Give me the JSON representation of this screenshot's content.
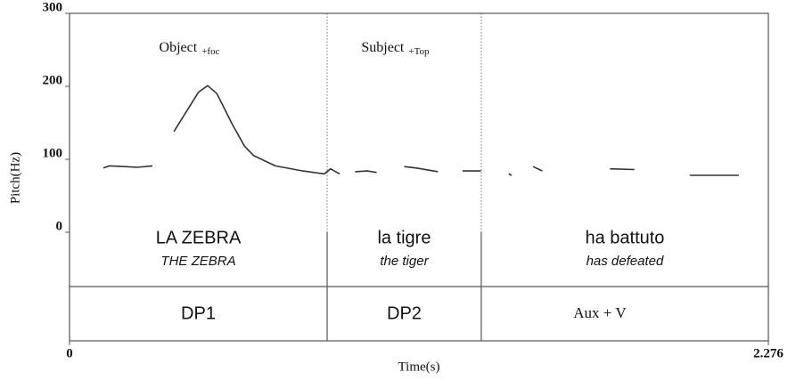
{
  "chart_data": {
    "type": "line",
    "x_label": "Time(s)",
    "y_label": "Pitch(Hz)",
    "xlim": [
      0,
      2.276
    ],
    "xticks": [
      0,
      2.276
    ],
    "ylim": [
      0,
      300
    ],
    "yticks": [
      0,
      100,
      200,
      300
    ],
    "color": "#333333",
    "x": [
      0.11,
      0.13,
      0.18,
      0.22,
      0.27,
      0.3,
      0.34,
      0.38,
      0.42,
      0.45,
      0.48,
      0.53,
      0.57,
      0.6,
      0.67,
      0.76,
      0.83,
      0.85,
      0.88,
      0.9,
      0.93,
      0.97,
      1.0,
      1.05,
      1.09,
      1.13,
      1.2,
      1.24,
      1.28,
      1.34,
      1.4,
      1.43,
      1.44,
      1.47,
      1.51,
      1.54,
      1.58,
      1.76,
      1.84,
      1.9,
      1.95,
      2.02,
      2.06,
      2.07,
      2.18
    ],
    "values": [
      88,
      91,
      90,
      89,
      91,
      null,
      138,
      165,
      192,
      201,
      190,
      148,
      118,
      105,
      91,
      84,
      80,
      87,
      80,
      null,
      83,
      84,
      82,
      null,
      90,
      88,
      83,
      null,
      84,
      84,
      null,
      80,
      78,
      null,
      90,
      84,
      null,
      87,
      86,
      null,
      null,
      78,
      78,
      78,
      78
    ],
    "boundaries": [
      0.839,
      1.341
    ],
    "segments": [
      {
        "heading": "Object",
        "heading_sub": "+foc",
        "word": "LA ZEBRA",
        "gloss": "THE ZEBRA",
        "tier": "DP1"
      },
      {
        "heading": "Subject",
        "heading_sub": "+Top",
        "word": "la tigre",
        "gloss": "the tiger",
        "tier": "DP2"
      },
      {
        "word": "ha battuto",
        "gloss": "has defeated",
        "tier": "Aux + V"
      }
    ]
  }
}
